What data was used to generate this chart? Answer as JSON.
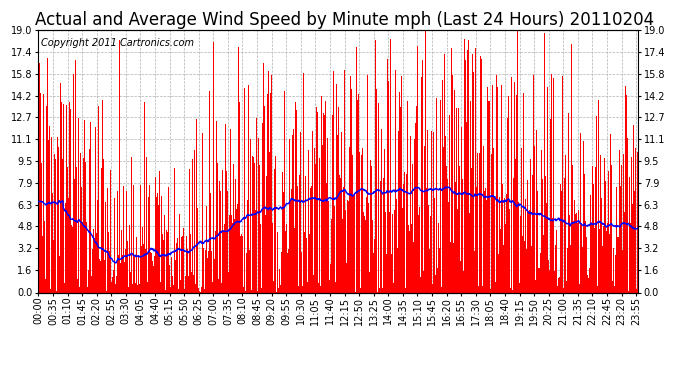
{
  "title": "Actual and Average Wind Speed by Minute mph (Last 24 Hours) 20110204",
  "copyright": "Copyright 2011 Cartronics.com",
  "yticks": [
    0.0,
    1.6,
    3.2,
    4.8,
    6.3,
    7.9,
    9.5,
    11.1,
    12.7,
    14.2,
    15.8,
    17.4,
    19.0
  ],
  "ymax": 19.0,
  "ymin": 0.0,
  "bar_color": "#ff0000",
  "line_color": "#0000ff",
  "background_color": "#ffffff",
  "grid_color": "#b0b0b0",
  "title_fontsize": 12,
  "copyright_fontsize": 7,
  "tick_fontsize": 7,
  "x_tick_interval_minutes": 35
}
